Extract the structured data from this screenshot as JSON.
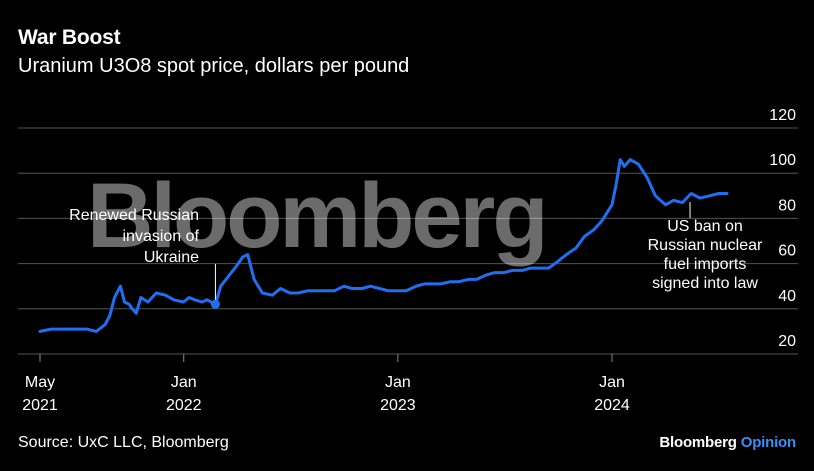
{
  "title": "War Boost",
  "subtitle": "Uranium U3O8 spot price, dollars per pound",
  "source": "Source: UxC LLC, Bloomberg",
  "brand": {
    "name": "Bloomberg",
    "accent": "Opinion"
  },
  "watermark": "Bloomberg",
  "colors": {
    "line": "#1f6ff2",
    "background": "#000000",
    "grid": "#555555",
    "text": "#ffffff",
    "brand_accent": "#3a8ef6"
  },
  "chart_data": {
    "type": "line",
    "title": "War Boost",
    "subtitle": "Uranium U3O8 spot price, dollars per pound",
    "ylim": [
      20,
      120
    ],
    "yticks": [
      20,
      40,
      60,
      80,
      100,
      120
    ],
    "y_axis_side": "right",
    "grid": true,
    "xticks": [
      {
        "date": "2021-05-01",
        "line1": "May",
        "line2": "2021"
      },
      {
        "date": "2022-01-01",
        "line1": "Jan",
        "line2": "2022"
      },
      {
        "date": "2023-01-01",
        "line1": "Jan",
        "line2": "2023"
      },
      {
        "date": "2024-01-01",
        "line1": "Jan",
        "line2": "2024"
      }
    ],
    "series": [
      {
        "x": [
          "2021-05-01",
          "2021-05-20",
          "2021-06-10",
          "2021-07-01",
          "2021-07-20",
          "2021-08-05",
          "2021-08-20",
          "2021-08-28",
          "2021-09-05",
          "2021-09-15",
          "2021-09-22",
          "2021-09-30",
          "2021-10-05",
          "2021-10-12",
          "2021-10-20",
          "2021-11-01",
          "2021-11-15",
          "2021-12-01",
          "2021-12-15",
          "2022-01-01",
          "2022-01-10",
          "2022-01-20",
          "2022-02-01",
          "2022-02-10",
          "2022-02-24",
          "2022-03-05",
          "2022-03-20",
          "2022-04-01",
          "2022-04-12",
          "2022-04-20",
          "2022-05-01",
          "2022-05-15",
          "2022-06-01",
          "2022-06-15",
          "2022-07-01",
          "2022-07-15",
          "2022-08-01",
          "2022-08-15",
          "2022-09-01",
          "2022-09-15",
          "2022-10-01",
          "2022-10-15",
          "2022-11-01",
          "2022-11-15",
          "2022-12-01",
          "2022-12-15",
          "2023-01-01",
          "2023-01-15",
          "2023-02-01",
          "2023-02-15",
          "2023-03-01",
          "2023-03-15",
          "2023-04-01",
          "2023-04-15",
          "2023-05-01",
          "2023-05-15",
          "2023-06-01",
          "2023-06-15",
          "2023-07-01",
          "2023-07-15",
          "2023-08-01",
          "2023-08-15",
          "2023-09-01",
          "2023-09-15",
          "2023-10-01",
          "2023-10-15",
          "2023-11-01",
          "2023-11-15",
          "2023-12-01",
          "2023-12-15",
          "2024-01-01",
          "2024-01-08",
          "2024-01-15",
          "2024-01-22",
          "2024-02-01",
          "2024-02-15",
          "2024-03-01",
          "2024-03-15",
          "2024-04-01",
          "2024-04-15",
          "2024-04-30",
          "2024-05-15",
          "2024-05-30",
          "2024-06-15",
          "2024-07-01",
          "2024-07-15"
        ],
        "values": [
          30,
          31,
          31,
          31,
          31,
          30,
          33,
          37,
          45,
          50,
          43,
          42,
          40,
          38,
          45,
          43,
          47,
          46,
          44,
          43,
          45,
          44,
          43,
          44,
          42,
          50,
          55,
          59,
          63,
          64,
          53,
          47,
          46,
          49,
          47,
          47,
          48,
          48,
          48,
          48,
          50,
          49,
          49,
          50,
          49,
          48,
          48,
          48,
          50,
          51,
          51,
          51,
          52,
          52,
          53,
          53,
          55,
          56,
          56,
          57,
          57,
          58,
          58,
          58,
          61,
          64,
          67,
          72,
          75,
          79,
          86,
          95,
          106,
          103,
          106,
          104,
          98,
          90,
          86,
          88,
          87,
          91,
          89,
          90,
          91,
          91
        ]
      }
    ],
    "annotations": [
      {
        "text": [
          "Renewed Russian",
          "invasion of",
          "Ukraine"
        ],
        "date": "2022-02-24",
        "value": 42
      },
      {
        "text": [
          "US ban on",
          "Russian nuclear",
          "fuel imports",
          "signed into law"
        ],
        "date": "2024-05-13",
        "value": 89
      }
    ]
  }
}
